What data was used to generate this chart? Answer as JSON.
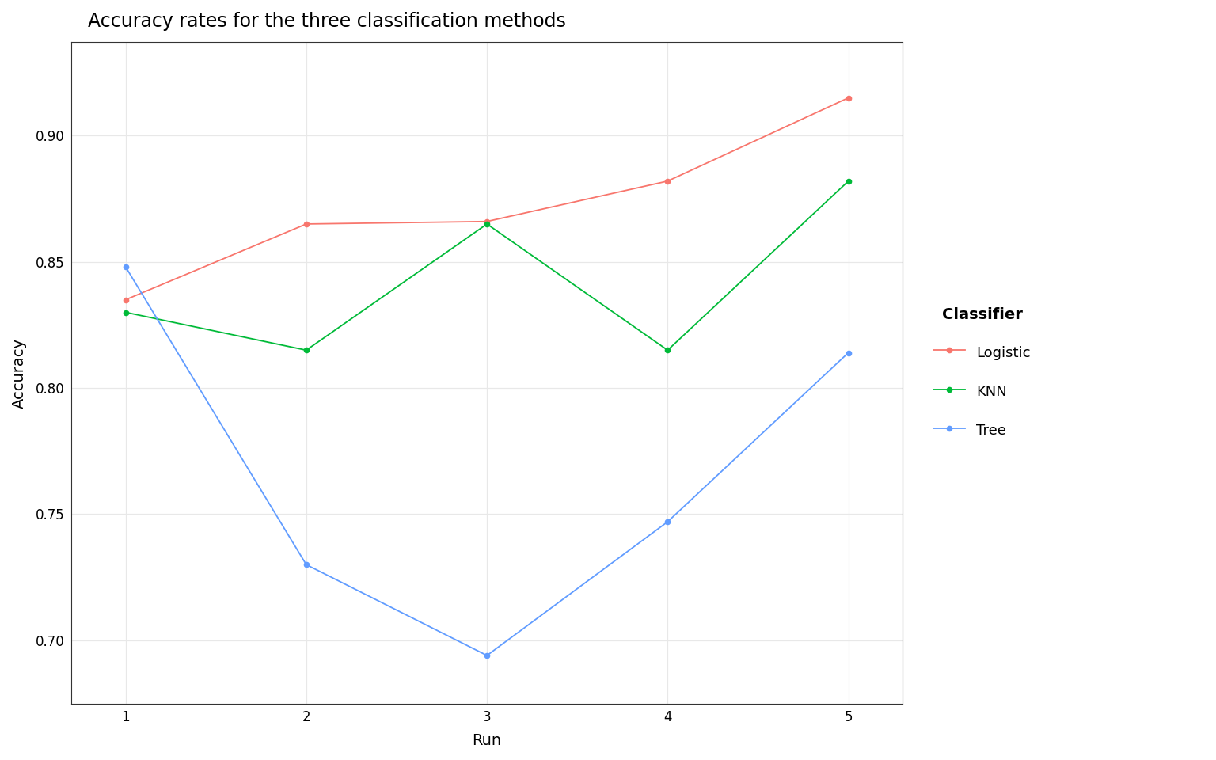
{
  "title": "Accuracy rates for the three classification methods",
  "xlabel": "Run",
  "ylabel": "Accuracy",
  "runs": [
    1,
    2,
    3,
    4,
    5
  ],
  "logistic": [
    0.835,
    0.865,
    0.866,
    0.882,
    0.915
  ],
  "knn": [
    0.83,
    0.815,
    0.865,
    0.815,
    0.882
  ],
  "tree": [
    0.848,
    0.73,
    0.694,
    0.747,
    0.814
  ],
  "logistic_color": "#F8766D",
  "knn_color": "#00BA38",
  "tree_color": "#619CFF",
  "background_color": "#FFFFFF",
  "panel_background": "#FFFFFF",
  "grid_color": "#E8E8E8",
  "ylim_min": 0.675,
  "ylim_max": 0.937,
  "yticks": [
    0.7,
    0.75,
    0.8,
    0.85,
    0.9
  ],
  "xticks": [
    1,
    2,
    3,
    4,
    5
  ],
  "legend_title": "Classifier",
  "legend_labels": [
    "Logistic",
    "KNN",
    "Tree"
  ],
  "title_fontsize": 17,
  "axis_label_fontsize": 14,
  "tick_fontsize": 12,
  "legend_fontsize": 13,
  "legend_title_fontsize": 14,
  "linewidth": 1.3,
  "markersize": 4.5
}
